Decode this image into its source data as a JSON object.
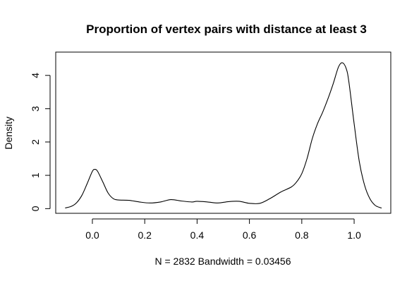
{
  "chart_data": {
    "type": "line",
    "title": "Proportion of vertex pairs with distance at least 3",
    "xlabel": "N = 2832   Bandwidth = 0.03456",
    "ylabel": "Density",
    "xlim": [
      -0.14,
      1.14
    ],
    "ylim": [
      -0.14,
      4.7
    ],
    "x_ticks": [
      0.0,
      0.2,
      0.4,
      0.6,
      0.8,
      1.0
    ],
    "x_tick_labels": [
      "0.0",
      "0.2",
      "0.4",
      "0.6",
      "0.8",
      "1.0"
    ],
    "y_ticks": [
      0,
      1,
      2,
      3,
      4
    ],
    "y_tick_labels": [
      "0",
      "1",
      "2",
      "3",
      "4"
    ],
    "grid": false,
    "series": [
      {
        "color": "#000000",
        "points": [
          [
            -0.104,
            0.02
          ],
          [
            -0.08,
            0.07
          ],
          [
            -0.06,
            0.18
          ],
          [
            -0.04,
            0.4
          ],
          [
            -0.02,
            0.75
          ],
          [
            0.0,
            1.12
          ],
          [
            0.01,
            1.18
          ],
          [
            0.02,
            1.12
          ],
          [
            0.04,
            0.8
          ],
          [
            0.06,
            0.47
          ],
          [
            0.08,
            0.3
          ],
          [
            0.1,
            0.26
          ],
          [
            0.14,
            0.25
          ],
          [
            0.18,
            0.2
          ],
          [
            0.22,
            0.17
          ],
          [
            0.26,
            0.2
          ],
          [
            0.3,
            0.27
          ],
          [
            0.34,
            0.23
          ],
          [
            0.38,
            0.2
          ],
          [
            0.4,
            0.22
          ],
          [
            0.44,
            0.2
          ],
          [
            0.48,
            0.17
          ],
          [
            0.52,
            0.21
          ],
          [
            0.56,
            0.22
          ],
          [
            0.6,
            0.16
          ],
          [
            0.64,
            0.16
          ],
          [
            0.68,
            0.31
          ],
          [
            0.72,
            0.5
          ],
          [
            0.76,
            0.65
          ],
          [
            0.78,
            0.8
          ],
          [
            0.8,
            1.05
          ],
          [
            0.82,
            1.5
          ],
          [
            0.84,
            2.1
          ],
          [
            0.86,
            2.55
          ],
          [
            0.88,
            2.9
          ],
          [
            0.9,
            3.3
          ],
          [
            0.92,
            3.75
          ],
          [
            0.94,
            4.25
          ],
          [
            0.955,
            4.38
          ],
          [
            0.97,
            4.2
          ],
          [
            0.98,
            3.8
          ],
          [
            1.0,
            2.55
          ],
          [
            1.02,
            1.4
          ],
          [
            1.04,
            0.7
          ],
          [
            1.06,
            0.3
          ],
          [
            1.08,
            0.1
          ],
          [
            1.1,
            0.03
          ],
          [
            1.105,
            0.02
          ]
        ]
      }
    ]
  }
}
